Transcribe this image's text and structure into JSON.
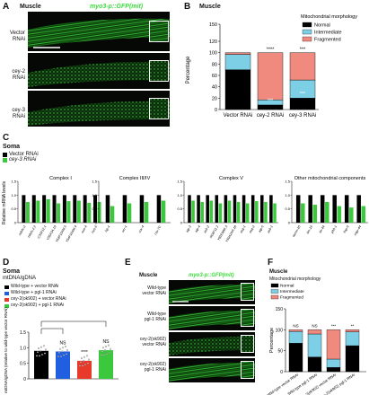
{
  "panelA": {
    "letter": "A",
    "title": "Muscle",
    "reporter": "myo3-p::GFP(mit)",
    "rows": [
      {
        "l1": "Vector",
        "l2": "RNAi"
      },
      {
        "l1": "cey-2",
        "l2": "RNAi"
      },
      {
        "l1": "cey-3",
        "l2": "RNAi"
      }
    ]
  },
  "panelB": {
    "letter": "B",
    "title": "Muscle",
    "legend_title": "Mitochondrial morphology",
    "chart_data": {
      "type": "bar",
      "stacked": true,
      "categories": [
        "Vector RNAi",
        "cey-2 RNAi",
        "cey-3 RNAi"
      ],
      "series": [
        {
          "name": "Normal",
          "color": "#000000",
          "values": [
            70,
            8,
            20
          ]
        },
        {
          "name": "Intermediate",
          "color": "#7dcfe6",
          "values": [
            27,
            9,
            32
          ]
        },
        {
          "name": "Fragmented",
          "color": "#f08a7f",
          "values": [
            3,
            83,
            48
          ]
        }
      ],
      "ylabel": "Percentage",
      "ylim": [
        0,
        150
      ],
      "yticks": [
        0,
        20,
        40,
        60,
        80,
        100,
        120,
        150
      ],
      "annotations": [
        "****",
        "***",
        "***",
        "***"
      ]
    }
  },
  "panelC": {
    "letter": "C",
    "title": "Soma",
    "legend": [
      {
        "label": "Vector RNAi",
        "color": "#000000"
      },
      {
        "label": "cey-3 RNAi",
        "color": "#3cc83c"
      }
    ],
    "ylabel": "Relative mRNA levels",
    "yticks": [
      "0",
      "0.5",
      "1.0",
      "1.5"
    ],
    "groups": [
      {
        "name": "Complex I",
        "genes": [
          "ndufs-2",
          "ndufs-2.2",
          "C33A12.1",
          "Y56A3A.19",
          "Y54F10AM.5",
          "Y54F10AM.4",
          "nuo-4",
          "nuo-5"
        ],
        "vector": [
          1,
          1,
          1,
          1,
          1,
          1,
          1,
          1
        ],
        "cey3": [
          0.75,
          0.8,
          0.85,
          0.7,
          0.78,
          0.8,
          0.72,
          0.75
        ]
      },
      {
        "name": "Complex III/IV",
        "genes": [
          "isp-1",
          "ucr-1",
          "cox-4",
          "cox-7C"
        ],
        "vector": [
          1,
          1,
          1,
          1
        ],
        "cey3": [
          0.6,
          0.7,
          0.75,
          0.8
        ]
      },
      {
        "name": "Complex V",
        "genes": [
          "atp-3",
          "atp-4",
          "asb-2",
          "R04F11.2",
          "Y82E9BR.3",
          "Y69A2AR.18",
          "asg-1",
          "asg-2",
          "atp-5",
          "asb-1"
        ],
        "vector": [
          1,
          1,
          1,
          1,
          1,
          1,
          1,
          1,
          1,
          1
        ],
        "cey3": [
          0.8,
          0.75,
          0.8,
          0.7,
          0.8,
          0.75,
          0.7,
          0.78,
          0.75,
          0.7
        ]
      },
      {
        "name": "Other mitochondrial components",
        "genes": [
          "tomm-20",
          "tim-16",
          "tin-44",
          "phb-1",
          "hsp-6",
          "mtpr-44"
        ],
        "vector": [
          1,
          1,
          1,
          1,
          1,
          1
        ],
        "cey3": [
          0.7,
          0.65,
          0.75,
          0.6,
          0.55,
          0.6
        ]
      }
    ]
  },
  "panelD": {
    "letter": "D",
    "title": "Soma",
    "subtitle": "mtDNA/gDNA",
    "legend": [
      {
        "label": "Wild-type + vector RNAi",
        "color": "#000000"
      },
      {
        "label": "Wild-type + pgl-1 RNAi",
        "color": "#1f5fe0"
      },
      {
        "label": "cey-2(ok902) + vector RNAi",
        "color": "#e83a2a"
      },
      {
        "label": "cey-2(ok902) + pgl-1 RNAi",
        "color": "#3cc83c"
      }
    ],
    "ylabel": "mtDNA/gDNA (relative to wild-type vector RNAi)",
    "chart_data": {
      "type": "bar",
      "categories": [
        "Wild-type + vector RNAi",
        "Wild-type + pgl-1 RNAi",
        "cey-2(ok902) + vector RNAi",
        "cey-2(ok902) + pgl-1 RNAi"
      ],
      "values": [
        0.9,
        0.88,
        0.58,
        0.92
      ],
      "yticks": [
        "0",
        "0.5",
        "1.0",
        "1.5"
      ],
      "ylim": [
        0,
        1.5
      ],
      "annotations": [
        "NS",
        "****",
        "NS"
      ]
    }
  },
  "panelE": {
    "letter": "E",
    "title": "Muscle",
    "reporter": "myo3-p::GFP(mit)",
    "rows": [
      {
        "l1": "Wild-type",
        "l2": "vector RNAi"
      },
      {
        "l1": "Wild-type",
        "l2": "pgl-1 RNAi"
      },
      {
        "l1": "cey-2(ok902)",
        "l2": "vector RNAi"
      },
      {
        "l1": "cey-2(ok902)",
        "l2": "pgl-1 RNAi"
      }
    ]
  },
  "panelF": {
    "letter": "F",
    "title": "Muscle",
    "legend_title": "Mitochondrial morphology",
    "chart_data": {
      "type": "bar",
      "stacked": true,
      "categories": [
        "Wild-type vector RNAi",
        "Wild-type pgl-1 RNAi",
        "cey-2(ok902) vector RNAi",
        "cey-2(ok902) pgl-1 RNAi"
      ],
      "series": [
        {
          "name": "Normal",
          "color": "#000000",
          "values": [
            68,
            35,
            10,
            62
          ]
        },
        {
          "name": "Intermediate",
          "color": "#7dcfe6",
          "values": [
            28,
            55,
            20,
            33
          ]
        },
        {
          "name": "Fragmented",
          "color": "#f08a7f",
          "values": [
            4,
            10,
            70,
            5
          ]
        }
      ],
      "ylabel": "Percentage",
      "ylim": [
        0,
        150
      ],
      "yticks": [
        0,
        50,
        100,
        150
      ],
      "annotations": [
        "NS",
        "NS",
        "***",
        "**"
      ]
    }
  }
}
